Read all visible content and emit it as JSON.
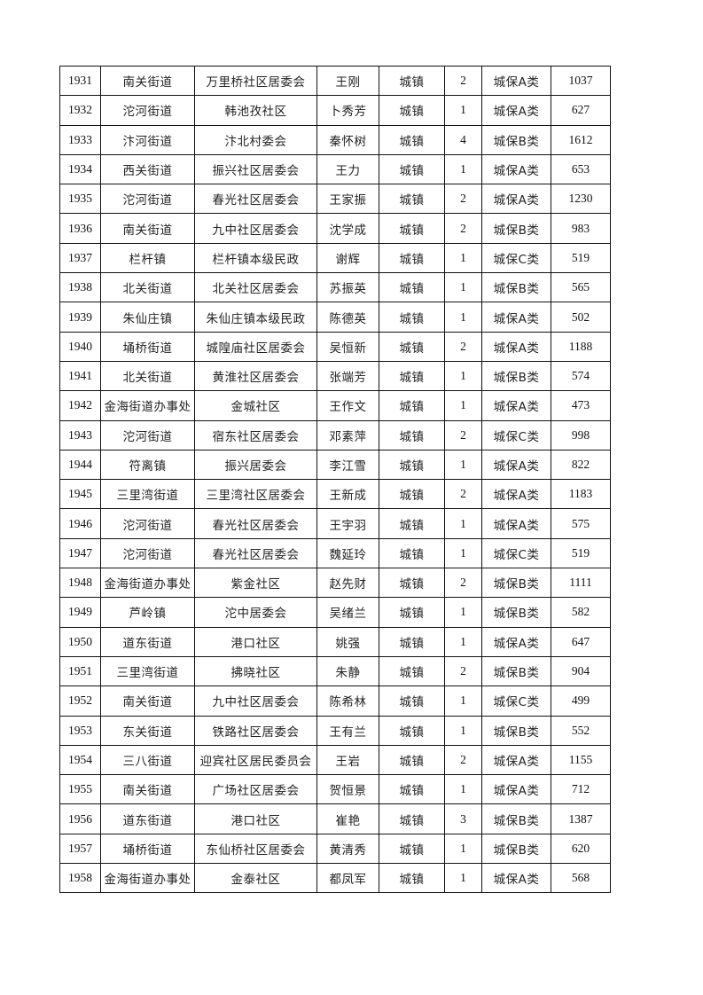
{
  "table": {
    "rows": [
      [
        "1931",
        "南关街道",
        "万里桥社区居委会",
        "王刚",
        "城镇",
        "2",
        "城保A类",
        "1037"
      ],
      [
        "1932",
        "沱河街道",
        "韩池孜社区",
        "卜秀芳",
        "城镇",
        "1",
        "城保A类",
        "627"
      ],
      [
        "1933",
        "汴河街道",
        "汴北村委会",
        "秦怀树",
        "城镇",
        "4",
        "城保B类",
        "1612"
      ],
      [
        "1934",
        "西关街道",
        "振兴社区居委会",
        "王力",
        "城镇",
        "1",
        "城保A类",
        "653"
      ],
      [
        "1935",
        "沱河街道",
        "春光社区居委会",
        "王家振",
        "城镇",
        "2",
        "城保A类",
        "1230"
      ],
      [
        "1936",
        "南关街道",
        "九中社区居委会",
        "沈学成",
        "城镇",
        "2",
        "城保B类",
        "983"
      ],
      [
        "1937",
        "栏杆镇",
        "栏杆镇本级民政",
        "谢辉",
        "城镇",
        "1",
        "城保C类",
        "519"
      ],
      [
        "1938",
        "北关街道",
        "北关社区居委会",
        "苏振英",
        "城镇",
        "1",
        "城保B类",
        "565"
      ],
      [
        "1939",
        "朱仙庄镇",
        "朱仙庄镇本级民政",
        "陈德英",
        "城镇",
        "1",
        "城保A类",
        "502"
      ],
      [
        "1940",
        "埇桥街道",
        "城隍庙社区居委会",
        "吴恒新",
        "城镇",
        "2",
        "城保A类",
        "1188"
      ],
      [
        "1941",
        "北关街道",
        "黄淮社区居委会",
        "张端芳",
        "城镇",
        "1",
        "城保B类",
        "574"
      ],
      [
        "1942",
        "金海街道办事处",
        "金城社区",
        "王作文",
        "城镇",
        "1",
        "城保A类",
        "473"
      ],
      [
        "1943",
        "沱河街道",
        "宿东社区居委会",
        "邓素萍",
        "城镇",
        "2",
        "城保C类",
        "998"
      ],
      [
        "1944",
        "符离镇",
        "振兴居委会",
        "李江雪",
        "城镇",
        "1",
        "城保A类",
        "822"
      ],
      [
        "1945",
        "三里湾街道",
        "三里湾社区居委会",
        "王新成",
        "城镇",
        "2",
        "城保A类",
        "1183"
      ],
      [
        "1946",
        "沱河街道",
        "春光社区居委会",
        "王宇羽",
        "城镇",
        "1",
        "城保A类",
        "575"
      ],
      [
        "1947",
        "沱河街道",
        "春光社区居委会",
        "魏延玲",
        "城镇",
        "1",
        "城保C类",
        "519"
      ],
      [
        "1948",
        "金海街道办事处",
        "紫金社区",
        "赵先财",
        "城镇",
        "2",
        "城保B类",
        "1111"
      ],
      [
        "1949",
        "芦岭镇",
        "沱中居委会",
        "吴绪兰",
        "城镇",
        "1",
        "城保B类",
        "582"
      ],
      [
        "1950",
        "道东街道",
        "港口社区",
        "姚强",
        "城镇",
        "1",
        "城保A类",
        "647"
      ],
      [
        "1951",
        "三里湾街道",
        "拂晓社区",
        "朱静",
        "城镇",
        "2",
        "城保B类",
        "904"
      ],
      [
        "1952",
        "南关街道",
        "九中社区居委会",
        "陈希林",
        "城镇",
        "1",
        "城保C类",
        "499"
      ],
      [
        "1953",
        "东关街道",
        "铁路社区居委会",
        "王有兰",
        "城镇",
        "1",
        "城保B类",
        "552"
      ],
      [
        "1954",
        "三八街道",
        "迎宾社区居民委员会",
        "王岩",
        "城镇",
        "2",
        "城保A类",
        "1155"
      ],
      [
        "1955",
        "南关街道",
        "广场社区居委会",
        "贺恒景",
        "城镇",
        "1",
        "城保A类",
        "712"
      ],
      [
        "1956",
        "道东街道",
        "港口社区",
        "崔艳",
        "城镇",
        "3",
        "城保B类",
        "1387"
      ],
      [
        "1957",
        "埇桥街道",
        "东仙桥社区居委会",
        "黄清秀",
        "城镇",
        "1",
        "城保B类",
        "620"
      ],
      [
        "1958",
        "金海街道办事处",
        "金泰社区",
        "都凤军",
        "城镇",
        "1",
        "城保A类",
        "568"
      ]
    ]
  }
}
